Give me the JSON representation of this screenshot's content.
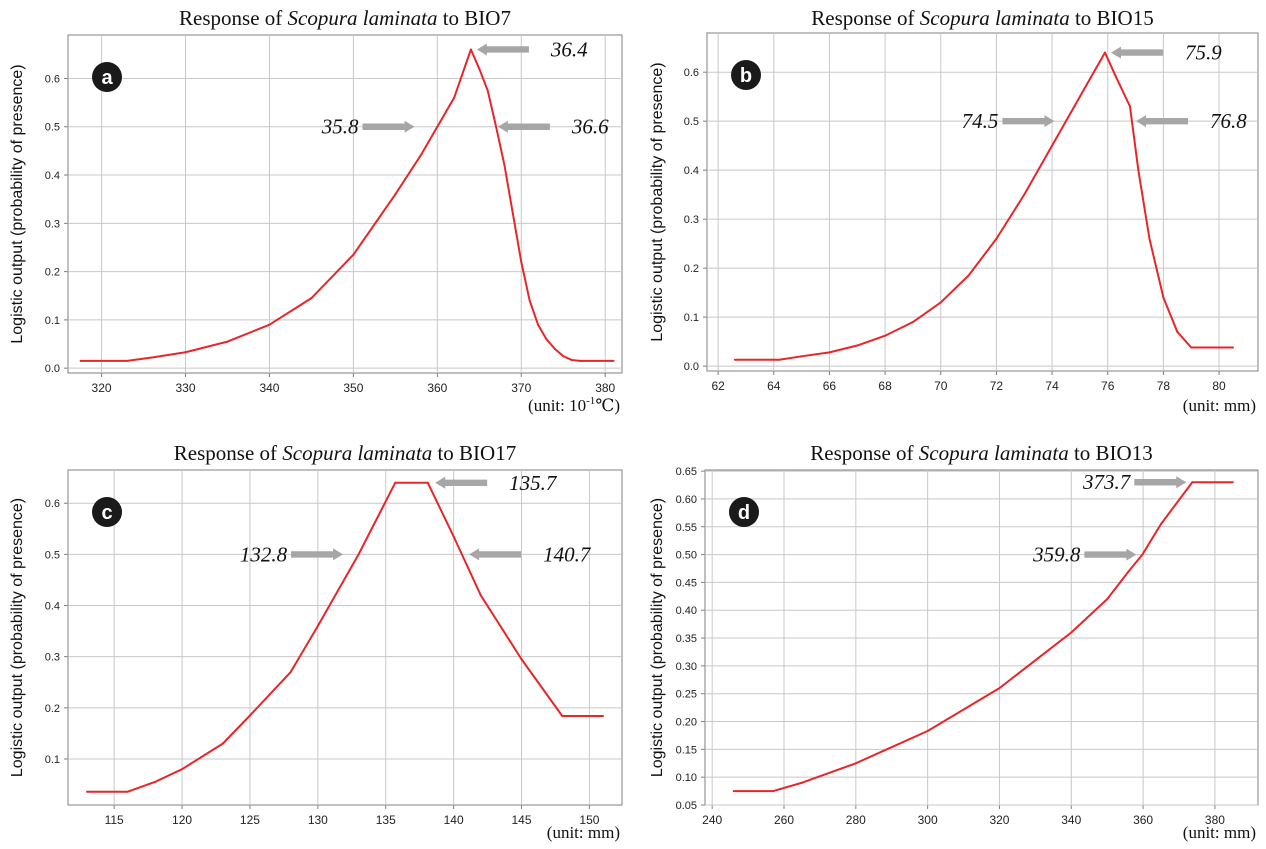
{
  "colors": {
    "curve": "#e8262a",
    "grid": "#c8c8c8",
    "axis": "#808080",
    "arrow": "#a6a6a6",
    "badge": "#1a1a1a"
  },
  "chart_data": [
    {
      "type": "line",
      "panel_letter": "a",
      "title_prefix": "Response of ",
      "title_species": "Scopura laminata",
      "title_suffix": " to BIO7",
      "ylabel": "Logistic output (probability of presence)",
      "unit_label": "(unit: 10-1℃)",
      "unit_base": "(unit: 10",
      "unit_sup": "-1",
      "unit_tail": "℃)",
      "xlim": [
        316,
        382
      ],
      "ylim": [
        -0.01,
        0.69
      ],
      "xticks": [
        320,
        330,
        340,
        350,
        360,
        370,
        380
      ],
      "yticks": [
        0.0,
        0.1,
        0.2,
        0.3,
        0.4,
        0.5,
        0.6
      ],
      "ytick_labels": [
        "0.0",
        "0.1",
        "0.2",
        "0.3",
        "0.4",
        "0.5",
        "0.6"
      ],
      "grid": true,
      "x": [
        317.5,
        323,
        326,
        330,
        335,
        340,
        345,
        350,
        355,
        358,
        360,
        362,
        364,
        365,
        366,
        367,
        368,
        369,
        370,
        371,
        372,
        373,
        374,
        375,
        376,
        377,
        381
      ],
      "y": [
        0.015,
        0.015,
        0.022,
        0.033,
        0.055,
        0.09,
        0.145,
        0.235,
        0.36,
        0.44,
        0.5,
        0.56,
        0.66,
        0.62,
        0.575,
        0.5,
        0.42,
        0.32,
        0.22,
        0.14,
        0.09,
        0.06,
        0.04,
        0.025,
        0.017,
        0.015,
        0.015
      ],
      "annotations": [
        {
          "label": "36.4",
          "side": "right",
          "x": 364,
          "y": 0.66
        },
        {
          "label": "35.8",
          "side": "left",
          "x": 358,
          "y": 0.5
        },
        {
          "label": "36.6",
          "side": "right",
          "x": 366.5,
          "y": 0.5
        }
      ]
    },
    {
      "type": "line",
      "panel_letter": "b",
      "title_prefix": "Response of ",
      "title_species": "Scopura laminata",
      "title_suffix": " to BIO15",
      "ylabel": "Logistic output (probability of presence)",
      "unit_label": "(unit: mm)",
      "unit_base": "(unit: mm)",
      "unit_sup": "",
      "unit_tail": "",
      "xlim": [
        61.6,
        81.4
      ],
      "ylim": [
        -0.01,
        0.68
      ],
      "xticks": [
        62,
        64,
        66,
        68,
        70,
        72,
        74,
        76,
        78,
        80
      ],
      "yticks": [
        0.0,
        0.1,
        0.2,
        0.3,
        0.4,
        0.5,
        0.6
      ],
      "ytick_labels": [
        "0.0",
        "0.1",
        "0.2",
        "0.3",
        "0.4",
        "0.5",
        "0.6"
      ],
      "grid": true,
      "x": [
        62.6,
        64.2,
        65,
        66,
        67,
        68,
        69,
        70,
        71,
        72,
        73,
        74,
        75,
        75.9,
        76.3,
        76.8,
        77.1,
        77.5,
        78,
        78.5,
        79,
        80.5
      ],
      "y": [
        0.013,
        0.013,
        0.02,
        0.028,
        0.042,
        0.062,
        0.09,
        0.13,
        0.185,
        0.26,
        0.35,
        0.45,
        0.55,
        0.64,
        0.59,
        0.53,
        0.4,
        0.26,
        0.14,
        0.07,
        0.038,
        0.038
      ],
      "annotations": [
        {
          "label": "75.9",
          "side": "right",
          "x": 75.9,
          "y": 0.64
        },
        {
          "label": "74.5",
          "side": "left",
          "x": 74.3,
          "y": 0.5
        },
        {
          "label": "76.8",
          "side": "right",
          "x": 76.8,
          "y": 0.5
        }
      ]
    },
    {
      "type": "line",
      "panel_letter": "c",
      "title_prefix": "Response of ",
      "title_species": "Scopura laminata",
      "title_suffix": " to BIO17",
      "ylabel": "Logistic output (probability of presence)",
      "unit_label": "(unit: mm)",
      "unit_base": "(unit: mm)",
      "unit_sup": "",
      "unit_tail": "",
      "xlim": [
        111.6,
        152.4
      ],
      "ylim": [
        0.01,
        0.665
      ],
      "xticks": [
        115,
        120,
        125,
        130,
        135,
        140,
        145,
        150
      ],
      "yticks": [
        0.1,
        0.2,
        0.3,
        0.4,
        0.5,
        0.6
      ],
      "ytick_labels": [
        "0.1",
        "0.2",
        "0.3",
        "0.4",
        "0.5",
        "0.6"
      ],
      "grid": true,
      "x": [
        113,
        116,
        118,
        120,
        123,
        125,
        128,
        130,
        133,
        135.7,
        138.1,
        140,
        142,
        145,
        148,
        151
      ],
      "y": [
        0.036,
        0.036,
        0.055,
        0.08,
        0.13,
        0.185,
        0.27,
        0.36,
        0.5,
        0.64,
        0.64,
        0.535,
        0.42,
        0.295,
        0.184,
        0.184
      ],
      "annotations": [
        {
          "label": "135.7",
          "side": "right",
          "x": 138.2,
          "y": 0.64
        },
        {
          "label": "132.8",
          "side": "left",
          "x": 132.3,
          "y": 0.5
        },
        {
          "label": "140.7",
          "side": "right",
          "x": 140.7,
          "y": 0.5
        }
      ]
    },
    {
      "type": "line",
      "panel_letter": "d",
      "title_prefix": "Response of ",
      "title_species": "Scopura laminata",
      "title_suffix": " to BIO13",
      "ylabel": "Logistic output (probability of presence)",
      "unit_label": "(unit: mm)",
      "unit_base": "(unit: mm)",
      "unit_sup": "",
      "unit_tail": "",
      "xlim": [
        238,
        392
      ],
      "ylim": [
        0.05,
        0.652
      ],
      "xticks": [
        240,
        260,
        280,
        300,
        320,
        340,
        360,
        380
      ],
      "yticks": [
        0.05,
        0.1,
        0.15,
        0.2,
        0.25,
        0.3,
        0.35,
        0.4,
        0.45,
        0.5,
        0.55,
        0.6,
        0.65
      ],
      "ytick_labels": [
        "0.05",
        "0.10",
        "0.15",
        "0.20",
        "0.25",
        "0.30",
        "0.35",
        "0.40",
        "0.45",
        "0.50",
        "0.55",
        "0.60",
        "0.65"
      ],
      "grid": true,
      "x": [
        246,
        257,
        265,
        280,
        300,
        320,
        340,
        350,
        356,
        359.8,
        365,
        373.7,
        385
      ],
      "y": [
        0.075,
        0.075,
        0.09,
        0.125,
        0.183,
        0.26,
        0.36,
        0.42,
        0.47,
        0.5,
        0.555,
        0.63,
        0.63
      ],
      "annotations": [
        {
          "label": "373.7",
          "side": "left",
          "x": 373.7,
          "y": 0.63
        },
        {
          "label": "359.8",
          "side": "left",
          "x": 359.8,
          "y": 0.5
        }
      ]
    }
  ]
}
